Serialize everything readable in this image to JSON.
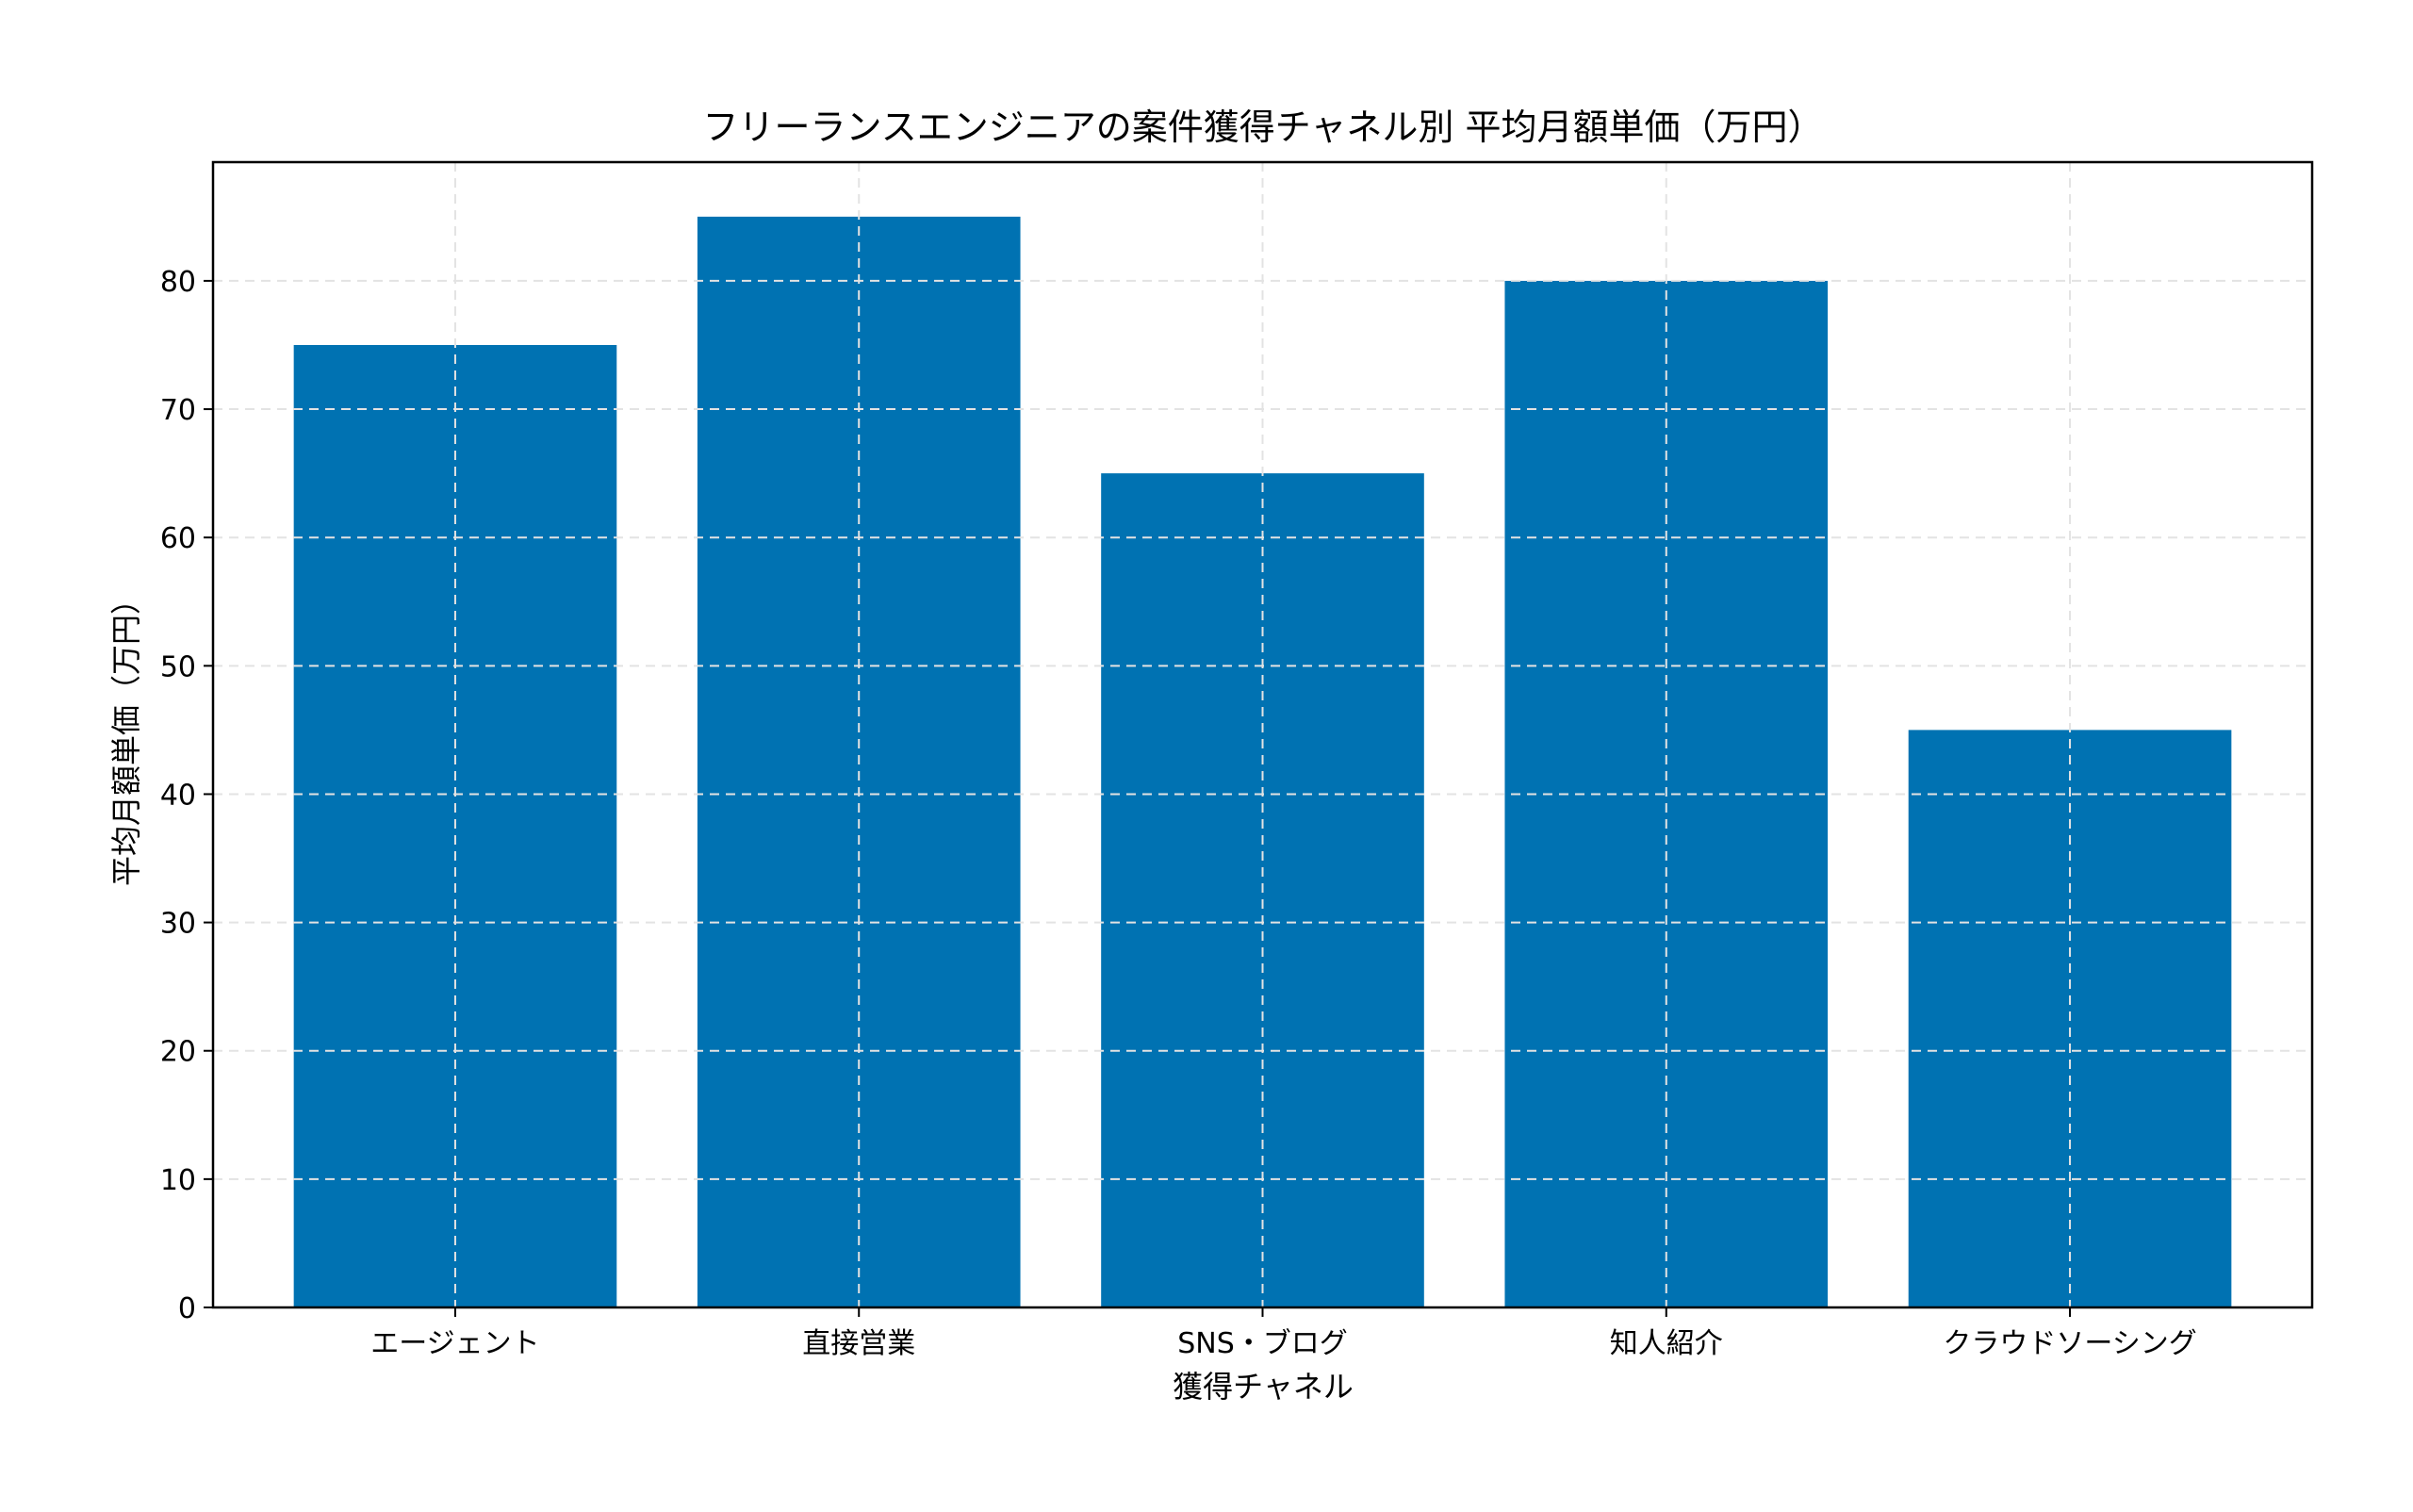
{
  "chart_data": {
    "type": "bar",
    "title": "フリーランスエンジニアの案件獲得チャネル別 平均月額単価（万円）",
    "xlabel": "獲得チャネル",
    "ylabel": "平均月額単価（万円）",
    "categories": [
      "エージェント",
      "直接営業",
      "SNS・ブログ",
      "知人紹介",
      "クラウドソーシング"
    ],
    "values": [
      75,
      85,
      65,
      80,
      45
    ],
    "ylim": [
      0,
      89.25
    ],
    "yticks": [
      0,
      10,
      20,
      30,
      40,
      50,
      60,
      70,
      80
    ],
    "grid": true,
    "bar_color": "#0072B2"
  }
}
